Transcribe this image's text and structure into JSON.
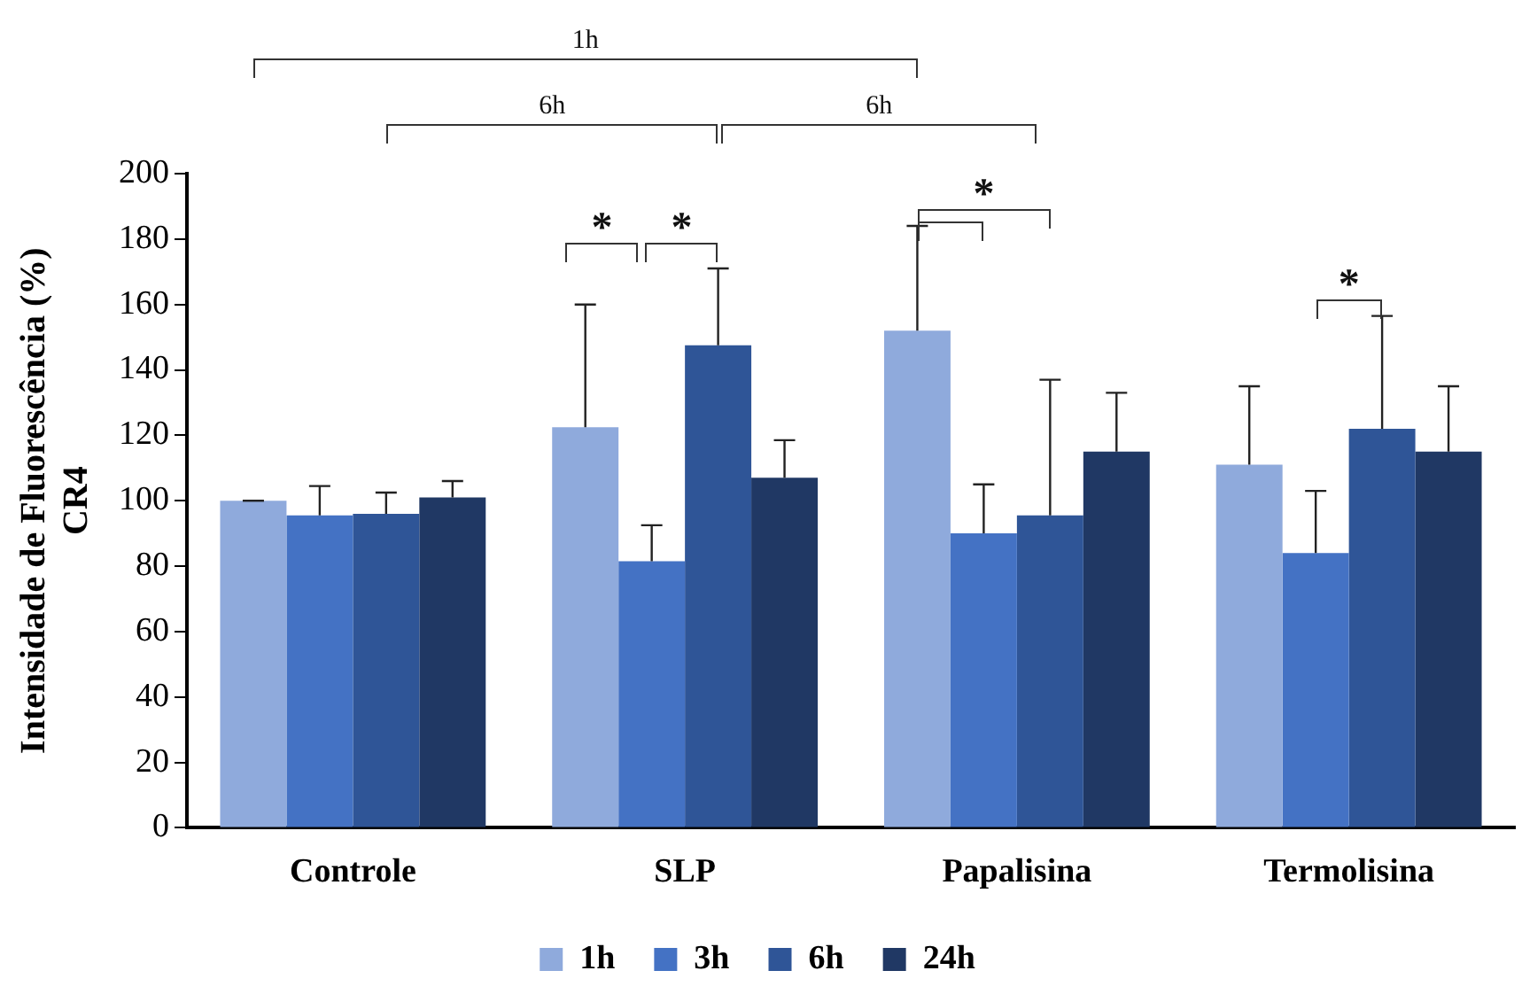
{
  "chart_data": {
    "type": "bar",
    "ylabel": "Intensidade de Fluorescência (%)\nCR4",
    "categories": [
      "Controle",
      "SLP",
      "Papalisina",
      "Termolisina"
    ],
    "series": [
      {
        "name": "1h",
        "color": "#8faadc",
        "values": [
          100,
          122.5,
          152,
          111
        ],
        "errors": [
          0,
          37.5,
          32,
          24
        ]
      },
      {
        "name": "3h",
        "color": "#4472c4",
        "values": [
          95.5,
          81.5,
          90,
          84
        ],
        "errors": [
          9,
          11,
          15,
          19
        ]
      },
      {
        "name": "6h",
        "color": "#2f5597",
        "values": [
          96,
          147.5,
          95.5,
          122
        ],
        "errors": [
          6.5,
          23.5,
          41.5,
          34.5
        ]
      },
      {
        "name": "24h",
        "color": "#203864",
        "values": [
          101,
          107,
          115,
          115
        ],
        "errors": [
          5,
          11.5,
          18,
          20
        ]
      }
    ],
    "ylim": [
      0,
      200
    ],
    "yticks": [
      0,
      20,
      40,
      60,
      80,
      100,
      120,
      140,
      160,
      180,
      200
    ],
    "grid": false,
    "legend": "bottom",
    "annotations": [
      "1h",
      "6h",
      "6h",
      "*",
      "*",
      "*",
      "*"
    ]
  }
}
